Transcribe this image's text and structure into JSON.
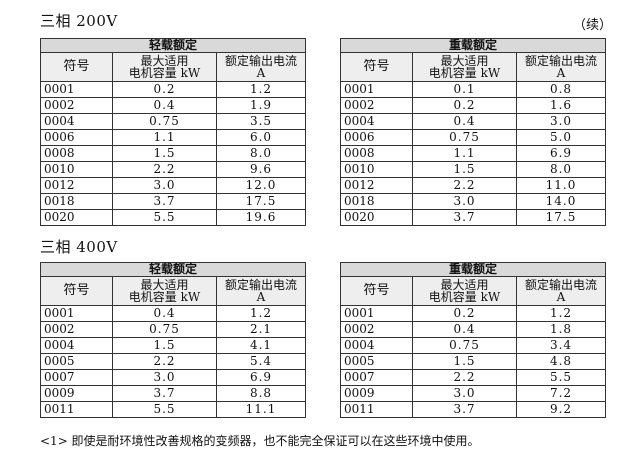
{
  "sections": [
    {
      "title": "三相 200V",
      "tables": [
        {
          "caption": "轻载额定",
          "headers": {
            "code": "符号",
            "motor_line1": "最大适用",
            "motor_line2": "电机容量 kW",
            "current_line1": "额定输出电流",
            "current_line2": "A"
          },
          "rows": [
            [
              "0001",
              "0.2",
              "1.2"
            ],
            [
              "0002",
              "0.4",
              "1.9"
            ],
            [
              "0004",
              "0.75",
              "3.5"
            ],
            [
              "0006",
              "1.1",
              "6.0"
            ],
            [
              "0008",
              "1.5",
              "8.0"
            ],
            [
              "0010",
              "2.2",
              "9.6"
            ],
            [
              "0012",
              "3.0",
              "12.0"
            ],
            [
              "0018",
              "3.7",
              "17.5"
            ],
            [
              "0020",
              "5.5",
              "19.6"
            ]
          ]
        },
        {
          "caption": "重载额定",
          "headers": {
            "code": "符号",
            "motor_line1": "最大适用",
            "motor_line2": "电机容量 kW",
            "current_line1": "额定输出电流",
            "current_line2": "A"
          },
          "rows": [
            [
              "0001",
              "0.1",
              "0.8"
            ],
            [
              "0002",
              "0.2",
              "1.6"
            ],
            [
              "0004",
              "0.4",
              "3.0"
            ],
            [
              "0006",
              "0.75",
              "5.0"
            ],
            [
              "0008",
              "1.1",
              "6.9"
            ],
            [
              "0010",
              "1.5",
              "8.0"
            ],
            [
              "0012",
              "2.2",
              "11.0"
            ],
            [
              "0018",
              "3.0",
              "14.0"
            ],
            [
              "0020",
              "3.7",
              "17.5"
            ]
          ]
        }
      ]
    },
    {
      "title": "三相 400V",
      "tables": [
        {
          "caption": "轻载额定",
          "headers": {
            "code": "符号",
            "motor_line1": "最大适用",
            "motor_line2": "电机容量 kW",
            "current_line1": "额定输出电流",
            "current_line2": "A"
          },
          "rows": [
            [
              "0001",
              "0.4",
              "1.2"
            ],
            [
              "0002",
              "0.75",
              "2.1"
            ],
            [
              "0004",
              "1.5",
              "4.1"
            ],
            [
              "0005",
              "2.2",
              "5.4"
            ],
            [
              "0007",
              "3.0",
              "6.9"
            ],
            [
              "0009",
              "3.7",
              "8.8"
            ],
            [
              "0011",
              "5.5",
              "11.1"
            ]
          ]
        },
        {
          "caption": "重载额定",
          "headers": {
            "code": "符号",
            "motor_line1": "最大适用",
            "motor_line2": "电机容量 kW",
            "current_line1": "额定输出电流",
            "current_line2": "A"
          },
          "rows": [
            [
              "0001",
              "0.2",
              "1.2"
            ],
            [
              "0002",
              "0.4",
              "1.8"
            ],
            [
              "0004",
              "0.75",
              "3.4"
            ],
            [
              "0005",
              "1.5",
              "4.8"
            ],
            [
              "0007",
              "2.2",
              "5.5"
            ],
            [
              "0009",
              "3.0",
              "7.2"
            ],
            [
              "0011",
              "3.7",
              "9.2"
            ]
          ]
        }
      ]
    }
  ],
  "continued_label": "（续）",
  "footnote": "<1> 即使是耐环境性改善规格的变频器，也不能完全保证可以在这些环境中使用。"
}
